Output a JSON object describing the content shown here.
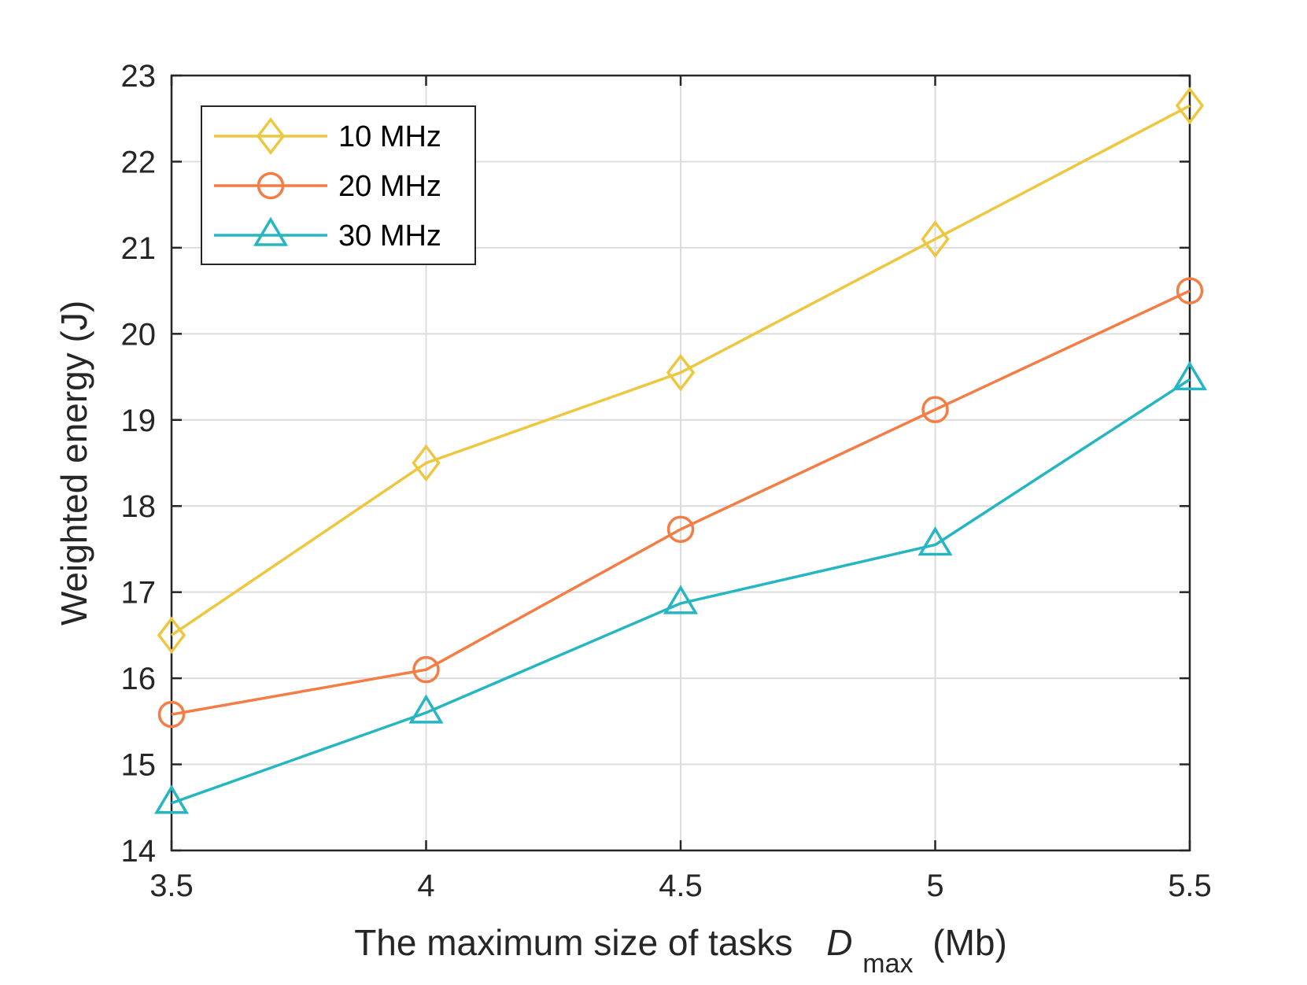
{
  "chart_data": {
    "type": "line",
    "title": "",
    "xlabel": {
      "prefix": "The maximum size of tasks",
      "symbol": "D",
      "subscript": "max",
      "unit": "(Mb)"
    },
    "ylabel": "Weighted energy (J)",
    "xlim": [
      3.5,
      5.5
    ],
    "ylim": [
      14,
      23
    ],
    "x": [
      3.5,
      4,
      4.5,
      5,
      5.5
    ],
    "xticks": [
      3.5,
      4,
      4.5,
      5,
      5.5
    ],
    "xtick_labels": [
      "3.5",
      "4",
      "4.5",
      "5",
      "5.5"
    ],
    "yticks": [
      14,
      15,
      16,
      17,
      18,
      19,
      20,
      21,
      22,
      23
    ],
    "ytick_labels": [
      "14",
      "15",
      "16",
      "17",
      "18",
      "19",
      "20",
      "21",
      "22",
      "23"
    ],
    "grid": true,
    "legend_position": "top-left",
    "series": [
      {
        "name": "10 MHz",
        "marker": "diamond",
        "color": "#EDC73F",
        "values": [
          16.5,
          18.5,
          19.55,
          21.1,
          22.65
        ]
      },
      {
        "name": "20 MHz",
        "marker": "circle",
        "color": "#F47C45",
        "values": [
          15.58,
          16.1,
          17.73,
          19.12,
          20.5
        ]
      },
      {
        "name": "30 MHz",
        "marker": "triangle",
        "color": "#26B6C2",
        "values": [
          14.55,
          15.6,
          16.87,
          17.55,
          19.47
        ]
      }
    ]
  }
}
